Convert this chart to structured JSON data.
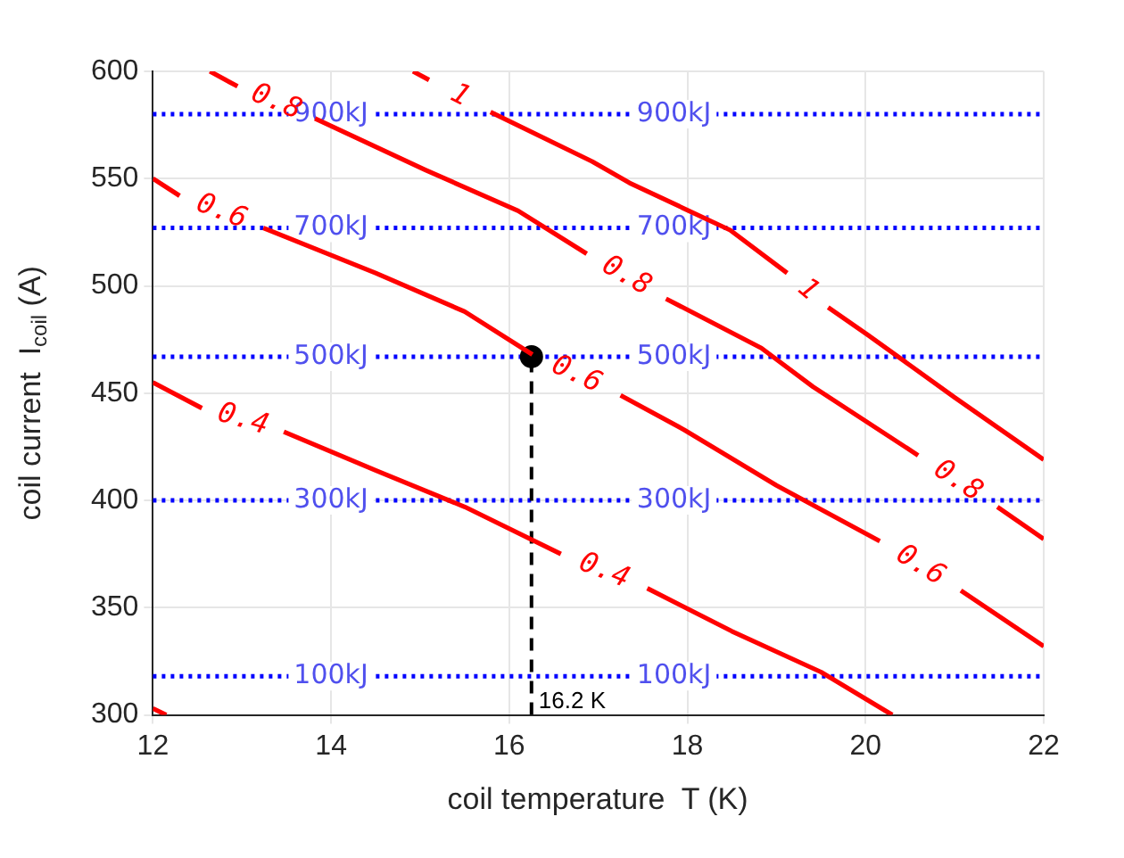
{
  "chart_data": {
    "type": "line",
    "xlabel": "coil temperature  T (K)",
    "ylabel": "coil current  I$_{coil}$ (A)",
    "xlim": [
      12,
      22
    ],
    "xticks": [
      12,
      14,
      16,
      18,
      20,
      22
    ],
    "ylim": [
      300,
      600
    ],
    "yticks": [
      300,
      350,
      400,
      450,
      500,
      550,
      600
    ],
    "grid": true,
    "legend": false,
    "series": [
      {
        "name": "0.4",
        "color": "#ff0000",
        "x": [
          12,
          12.55,
          12.9,
          13.47,
          14.5,
          15.5,
          16.58,
          17.05,
          17.55,
          18.5,
          19.5,
          20.3
        ],
        "values": [
          455,
          443,
          null,
          432,
          414,
          397,
          375,
          null,
          359,
          339,
          320,
          300
        ]
      },
      {
        "name": "0.6",
        "color": "#ff0000",
        "x": [
          12,
          12.3,
          12.75,
          13.24,
          14.5,
          15.5,
          16.26,
          16.75,
          17.25,
          17.96,
          19.0,
          20.16,
          20.6,
          21.07,
          22
        ],
        "values": [
          550,
          542,
          null,
          527,
          506,
          488,
          468,
          null,
          449,
          433,
          407,
          381,
          null,
          358,
          332
        ]
      },
      {
        "name": "0.8",
        "color": "#ff0000",
        "x": [
          12.64,
          12.95,
          13.4,
          13.82,
          15.06,
          16.1,
          16.87,
          17.3,
          17.76,
          18.83,
          19.41,
          20.59,
          21.0,
          21.48,
          22
        ],
        "values": [
          600,
          593,
          null,
          578,
          554,
          535,
          515,
          null,
          494,
          471,
          453,
          421,
          null,
          397,
          382
        ]
      },
      {
        "name": "1",
        "color": "#ff0000",
        "x": [
          14.92,
          15.1,
          15.45,
          15.79,
          16.93,
          17.35,
          18.48,
          19.12,
          19.35,
          19.58,
          20.03,
          21.0,
          22
        ],
        "values": [
          600,
          596,
          null,
          581,
          558,
          548,
          526,
          506,
          null,
          490,
          477,
          448,
          419
        ]
      },
      {
        "color": "#ff0000",
        "x": [
          12,
          12.15
        ],
        "values": [
          303,
          300
        ]
      },
      {
        "color": "#000000",
        "line_style": "dashed",
        "x": [
          16.25,
          16.25
        ],
        "values": [
          300,
          467
        ]
      },
      {
        "type": "scatter",
        "marker": "circle",
        "color": "#000000",
        "x": [
          16.25
        ],
        "values": [
          467
        ]
      }
    ],
    "ref_lines": [
      {
        "axis": "y",
        "value": 318,
        "label": "100kJ",
        "color": "#0000ff",
        "line_style": "dotted"
      },
      {
        "axis": "y",
        "value": 400,
        "label": "300kJ",
        "color": "#0000ff",
        "line_style": "dotted"
      },
      {
        "axis": "y",
        "value": 467,
        "label": "500kJ",
        "color": "#0000ff",
        "line_style": "dotted"
      },
      {
        "axis": "y",
        "value": 527,
        "label": "700kJ",
        "color": "#0000ff",
        "line_style": "dotted"
      },
      {
        "axis": "y",
        "value": 580,
        "label": "900kJ",
        "color": "#0000ff",
        "line_style": "dotted"
      }
    ],
    "annotations": [
      {
        "text": "16.2 K",
        "x": 16.25,
        "y": 300
      }
    ]
  }
}
